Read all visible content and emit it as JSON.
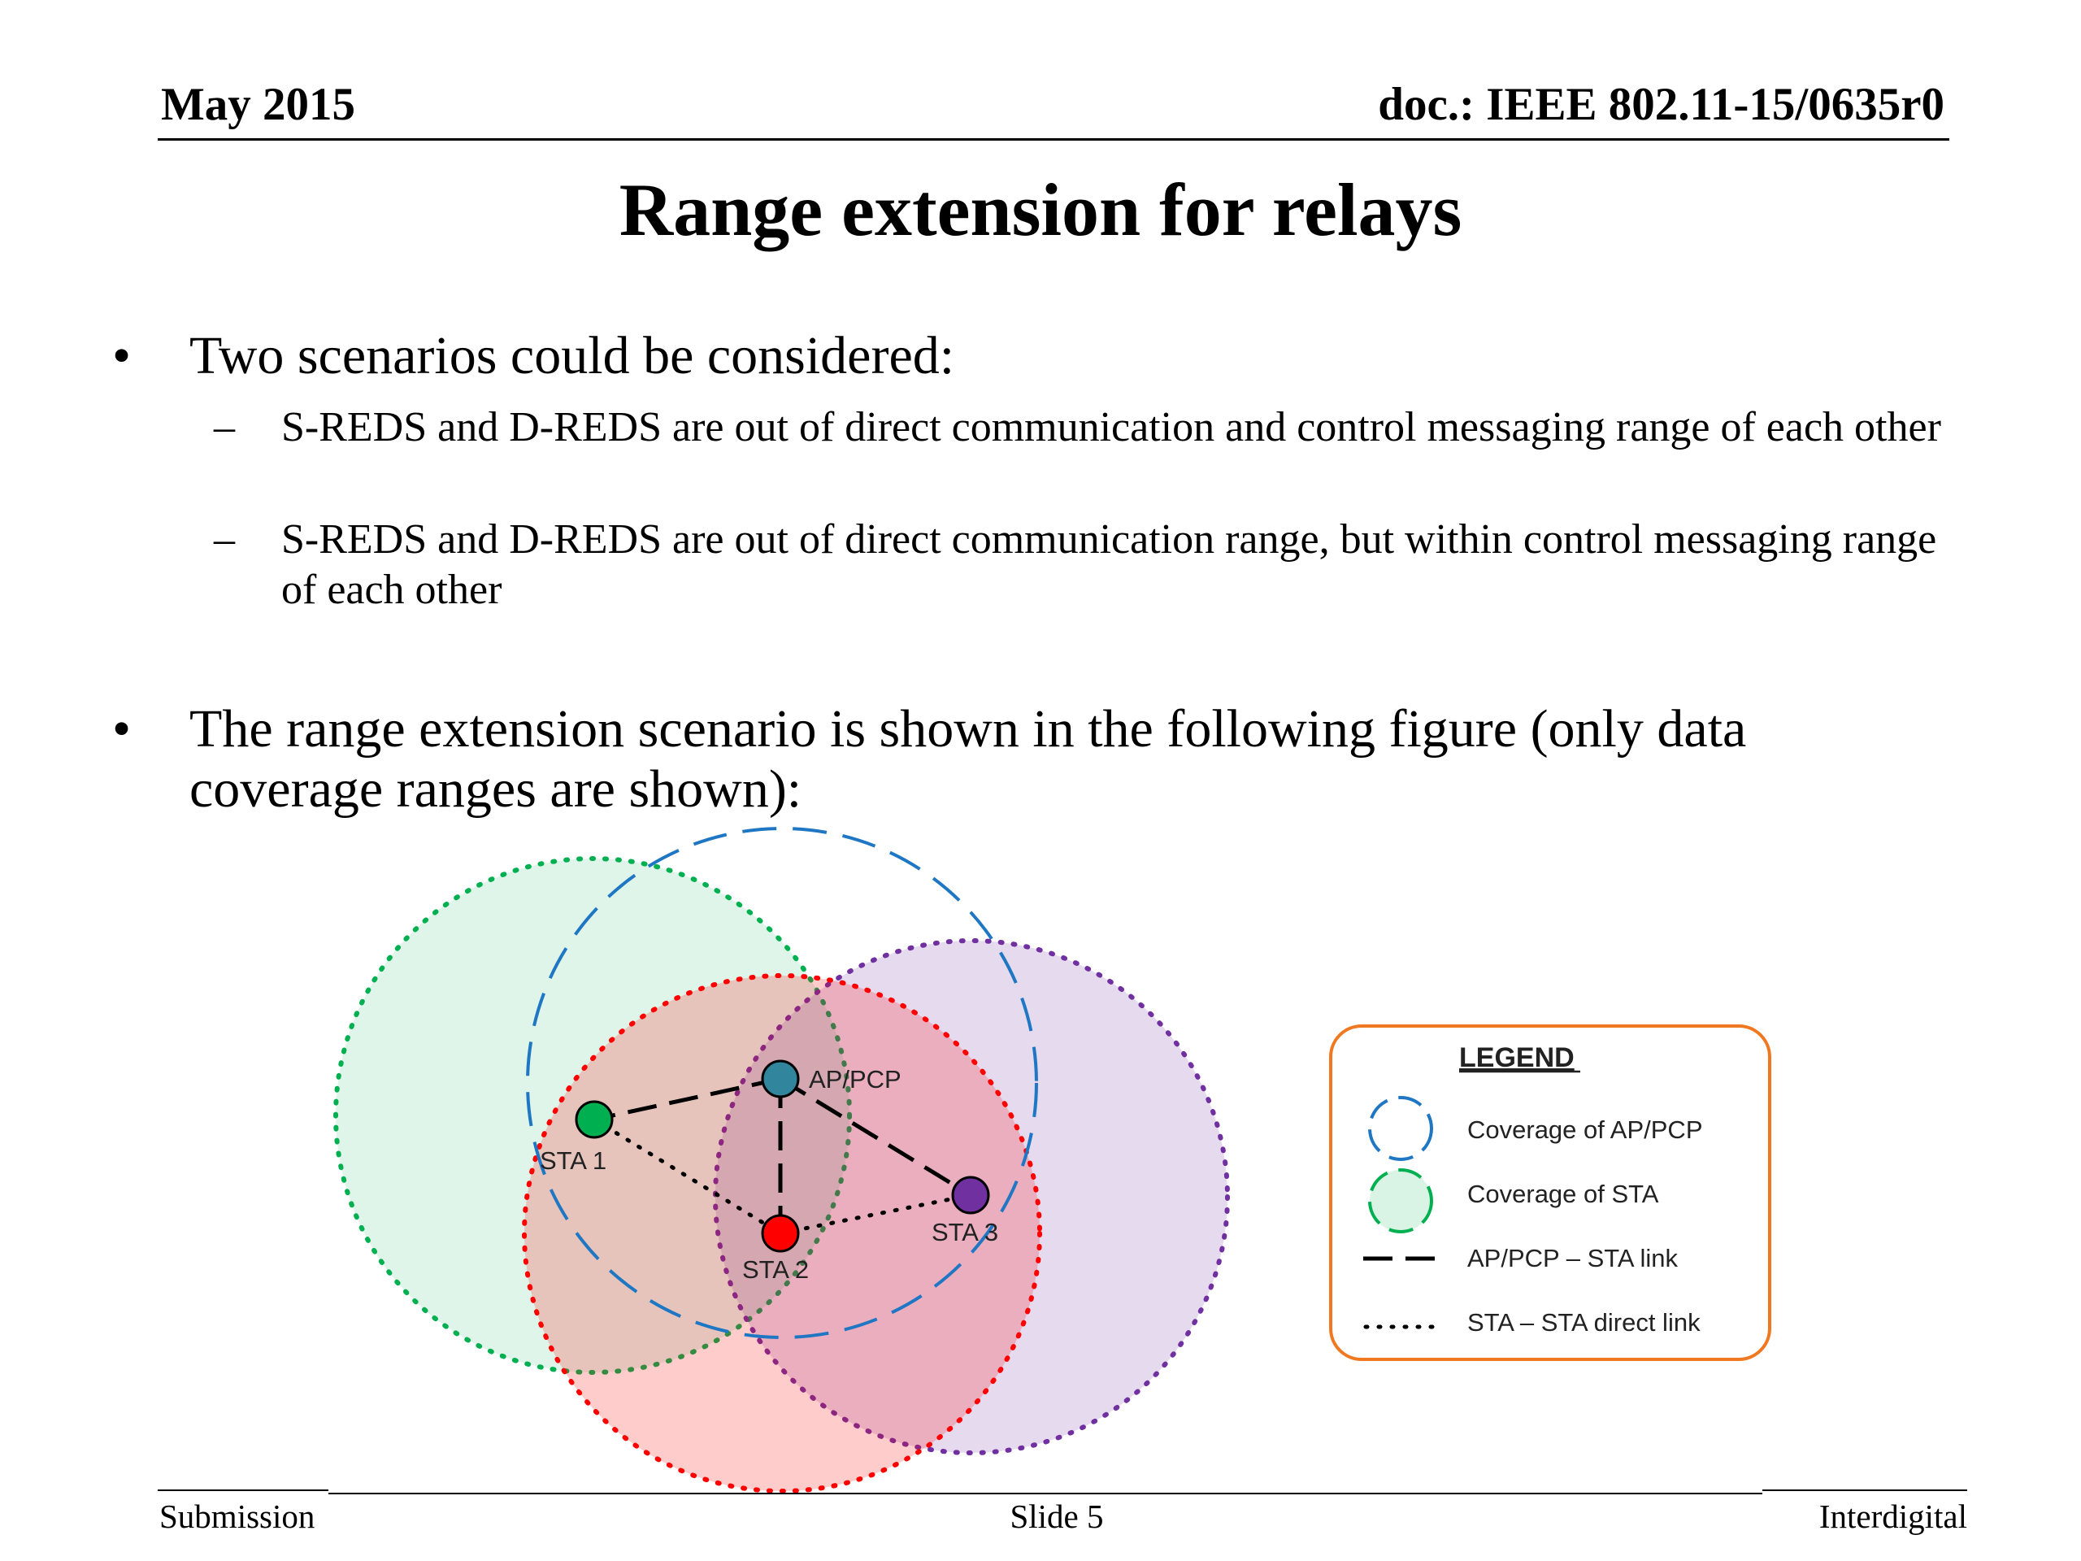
{
  "header": {
    "date": "May 2015",
    "doc_id": "doc.: IEEE 802.11-15/0635r0"
  },
  "title": "Range extension for relays",
  "bullets": [
    {
      "text": "Two scenarios could be considered:",
      "sub": [
        "S-REDS and D-REDS are out of direct communication and control messaging range of each other",
        "S-REDS and D-REDS are out of direct communication range, but within control messaging range of each other"
      ]
    },
    {
      "text": "The range extension scenario is shown in the following figure (only data coverage ranges are shown):"
    }
  ],
  "bullet_mark": "•",
  "sub_mark": "–",
  "figure": {
    "nodes": {
      "ap": {
        "label": "AP/PCP",
        "color": "#31859c"
      },
      "sta1": {
        "label": "STA 1",
        "color": "#00b050"
      },
      "sta2": {
        "label": "STA 2",
        "color": "#ff0000"
      },
      "sta3": {
        "label": "STA 3",
        "color": "#7030a0"
      }
    },
    "coverage_colors": {
      "ap": "#1f77c4",
      "sta1": "#00b050",
      "sta2": "#ff0000",
      "sta3": "#7030a0"
    },
    "legend": {
      "title": "LEGEND",
      "items": [
        "Coverage of AP/PCP",
        "Coverage of STA",
        "AP/PCP – STA link",
        "STA – STA direct link"
      ],
      "border_color": "#f07820"
    }
  },
  "footer": {
    "left": "Submission",
    "center": "Slide 5",
    "right": "Interdigital"
  }
}
